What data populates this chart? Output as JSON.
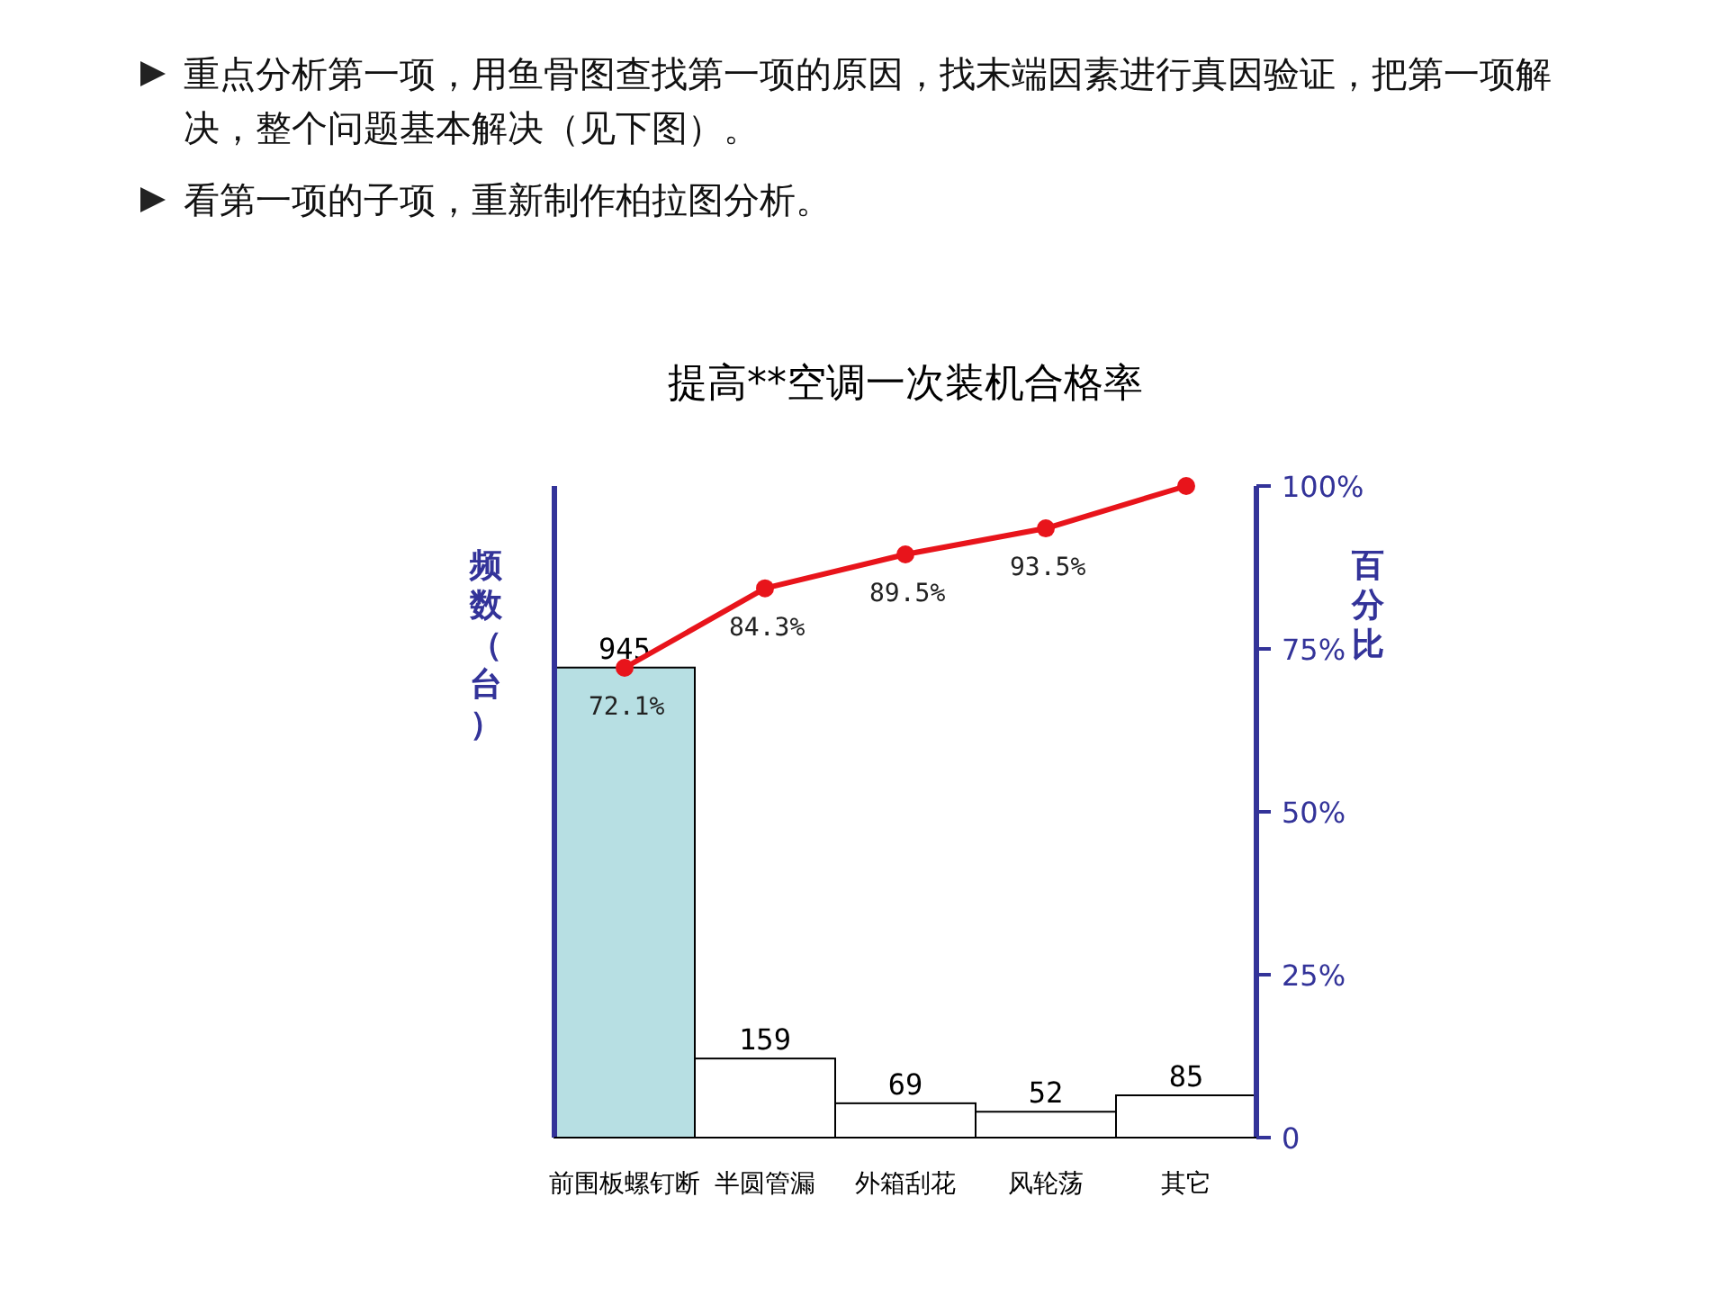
{
  "chart_data": {
    "type": "bar",
    "title": "提高**空调一次装机合格率",
    "annotations": [
      "重点分析第一项，用鱼骨图查找第一项的原因，找末端因素进行真因验证，把第一项解决，整个问题基本解决（见下图）。",
      "看第一项的子项，重新制作柏拉图分析。"
    ],
    "ylabel": "频数（台）",
    "y2label": "百分比",
    "categories": [
      "前围板螺钉断",
      "半圆管漏",
      "外箱刮花",
      "风轮荡",
      "其它"
    ],
    "series": [
      {
        "values": [
          945,
          159,
          69,
          52,
          85
        ],
        "colors": [
          "#b7dfe3",
          "#ffffff",
          "#ffffff",
          "#ffffff",
          "#ffffff"
        ],
        "value_labels": [
          "945",
          "159",
          "69",
          "52",
          "85"
        ]
      },
      {
        "type": "line",
        "axis": "y2",
        "color": "#e8141b",
        "values": [
          72.1,
          84.3,
          89.5,
          93.5,
          100
        ],
        "value_labels": [
          "72.1%",
          "84.3%",
          "89.5%",
          "93.5%",
          null
        ]
      }
    ],
    "ylim": [
      0,
      1310
    ],
    "y2lim": [
      0,
      100
    ],
    "y2ticks": [
      0,
      {
        "value": 25,
        "label": "25%"
      },
      {
        "value": 50,
        "label": "50%"
      },
      {
        "value": 75,
        "label": "75%"
      },
      {
        "value": 100,
        "label": "100%"
      }
    ],
    "marker": "circle"
  }
}
